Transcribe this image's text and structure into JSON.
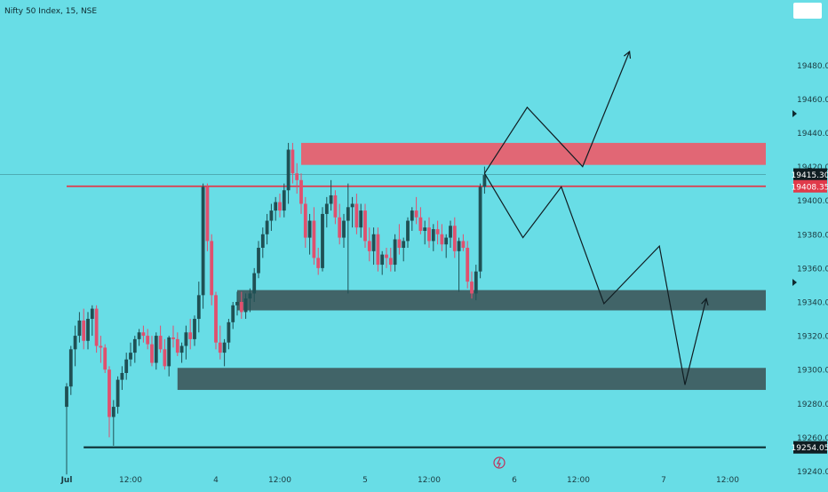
{
  "header": {
    "title": "Nifty 50 Index, 15, NSE"
  },
  "colors": {
    "background": "#68dde6",
    "bull": "#1f5054",
    "bear": "#e0506e",
    "supply_zone": "#e8606f",
    "demand_zone": "#3d575a",
    "price_line": "#e03a4a",
    "support_line": "#0d2e33",
    "drawing": "#101d22"
  },
  "chart_data": {
    "type": "candlestick",
    "symbol": "Nifty 50 Index",
    "interval": "15",
    "exchange": "NSE",
    "ylim": [
      19235,
      19500
    ],
    "y_ticks": [
      19240,
      19260,
      19280,
      19300,
      19320,
      19340,
      19360,
      19380,
      19400,
      19420,
      19440,
      19460,
      19480
    ],
    "x_ticks": [
      {
        "label": "Jul",
        "bar": 0
      },
      {
        "label": "12:00",
        "bar": 15
      },
      {
        "label": "4",
        "bar": 35
      },
      {
        "label": "12:00",
        "bar": 50
      },
      {
        "label": "5",
        "bar": 70
      },
      {
        "label": "12:00",
        "bar": 85
      },
      {
        "label": "6",
        "bar": 105
      },
      {
        "label": "12:00",
        "bar": 120
      },
      {
        "label": "7",
        "bar": 140
      },
      {
        "label": "12:00",
        "bar": 155
      }
    ],
    "price_labels": [
      {
        "value": 19415.3,
        "text": "19415.30",
        "style": "dark"
      },
      {
        "value": 19408.35,
        "text": "19408.35",
        "style": "red"
      },
      {
        "value": 19254.05,
        "text": "19254.05",
        "style": "dark"
      }
    ],
    "current_price": 19408.35,
    "candles": [
      [
        19278,
        19292,
        19238,
        19290
      ],
      [
        19290,
        19314,
        19285,
        19312
      ],
      [
        19312,
        19326,
        19302,
        19320
      ],
      [
        19320,
        19334,
        19316,
        19329
      ],
      [
        19329,
        19336,
        19312,
        19317
      ],
      [
        19317,
        19334,
        19312,
        19330
      ],
      [
        19330,
        19338,
        19320,
        19336
      ],
      [
        19336,
        19338,
        19310,
        19314
      ],
      [
        19314,
        19320,
        19304,
        19313
      ],
      [
        19313,
        19315,
        19298,
        19300
      ],
      [
        19300,
        19302,
        19260,
        19272
      ],
      [
        19272,
        19282,
        19255,
        19278
      ],
      [
        19278,
        19296,
        19274,
        19294
      ],
      [
        19294,
        19302,
        19288,
        19298
      ],
      [
        19298,
        19310,
        19294,
        19306
      ],
      [
        19306,
        19316,
        19302,
        19310
      ],
      [
        19310,
        19320,
        19304,
        19318
      ],
      [
        19318,
        19324,
        19314,
        19322
      ],
      [
        19322,
        19326,
        19316,
        19320
      ],
      [
        19320,
        19324,
        19312,
        19315
      ],
      [
        19315,
        19320,
        19302,
        19304
      ],
      [
        19304,
        19322,
        19300,
        19320
      ],
      [
        19320,
        19326,
        19310,
        19312
      ],
      [
        19312,
        19318,
        19300,
        19302
      ],
      [
        19302,
        19320,
        19296,
        19319
      ],
      [
        19319,
        19326,
        19313,
        19318
      ],
      [
        19318,
        19322,
        19308,
        19310
      ],
      [
        19310,
        19316,
        19304,
        19314
      ],
      [
        19314,
        19326,
        19306,
        19322
      ],
      [
        19322,
        19330,
        19312,
        19318
      ],
      [
        19318,
        19332,
        19314,
        19330
      ],
      [
        19330,
        19352,
        19322,
        19344
      ],
      [
        19344,
        19410,
        19336,
        19408
      ],
      [
        19408,
        19410,
        19370,
        19376
      ],
      [
        19376,
        19380,
        19338,
        19344
      ],
      [
        19344,
        19346,
        19312,
        19316
      ],
      [
        19316,
        19326,
        19306,
        19310
      ],
      [
        19310,
        19318,
        19302,
        19316
      ],
      [
        19316,
        19330,
        19312,
        19328
      ],
      [
        19328,
        19340,
        19324,
        19338
      ],
      [
        19338,
        19346,
        19332,
        19340
      ],
      [
        19340,
        19346,
        19330,
        19334
      ],
      [
        19334,
        19345,
        19330,
        19342
      ],
      [
        19342,
        19348,
        19334,
        19345
      ],
      [
        19345,
        19360,
        19340,
        19357
      ],
      [
        19357,
        19376,
        19354,
        19372
      ],
      [
        19372,
        19384,
        19366,
        19380
      ],
      [
        19380,
        19392,
        19374,
        19388
      ],
      [
        19388,
        19398,
        19382,
        19394
      ],
      [
        19394,
        19402,
        19388,
        19399
      ],
      [
        19399,
        19404,
        19390,
        19394
      ],
      [
        19394,
        19410,
        19390,
        19406
      ],
      [
        19406,
        19434,
        19398,
        19430
      ],
      [
        19430,
        19434,
        19410,
        19416
      ],
      [
        19416,
        19422,
        19404,
        19412
      ],
      [
        19412,
        19416,
        19392,
        19398
      ],
      [
        19398,
        19402,
        19372,
        19378
      ],
      [
        19378,
        19392,
        19368,
        19388
      ],
      [
        19388,
        19396,
        19362,
        19366
      ],
      [
        19366,
        19372,
        19356,
        19360
      ],
      [
        19360,
        19396,
        19358,
        19392
      ],
      [
        19392,
        19402,
        19384,
        19398
      ],
      [
        19398,
        19412,
        19394,
        19403
      ],
      [
        19403,
        19406,
        19386,
        19390
      ],
      [
        19390,
        19398,
        19374,
        19378
      ],
      [
        19378,
        19392,
        19372,
        19388
      ],
      [
        19388,
        19410,
        19345,
        19396
      ],
      [
        19396,
        19402,
        19384,
        19398
      ],
      [
        19398,
        19404,
        19380,
        19384
      ],
      [
        19384,
        19398,
        19378,
        19394
      ],
      [
        19394,
        19398,
        19372,
        19376
      ],
      [
        19376,
        19384,
        19364,
        19370
      ],
      [
        19370,
        19384,
        19362,
        19380
      ],
      [
        19380,
        19384,
        19358,
        19362
      ],
      [
        19362,
        19370,
        19356,
        19368
      ],
      [
        19368,
        19372,
        19360,
        19366
      ],
      [
        19366,
        19372,
        19358,
        19362
      ],
      [
        19362,
        19380,
        19358,
        19377
      ],
      [
        19377,
        19386,
        19368,
        19372
      ],
      [
        19372,
        19378,
        19364,
        19376
      ],
      [
        19376,
        19390,
        19372,
        19388
      ],
      [
        19388,
        19396,
        19382,
        19394
      ],
      [
        19394,
        19402,
        19386,
        19390
      ],
      [
        19390,
        19396,
        19380,
        19382
      ],
      [
        19382,
        19388,
        19374,
        19384
      ],
      [
        19384,
        19390,
        19372,
        19376
      ],
      [
        19376,
        19386,
        19370,
        19383
      ],
      [
        19383,
        19388,
        19374,
        19380
      ],
      [
        19380,
        19386,
        19370,
        19374
      ],
      [
        19374,
        19380,
        19366,
        19378
      ],
      [
        19378,
        19388,
        19372,
        19385
      ],
      [
        19385,
        19390,
        19366,
        19370
      ],
      [
        19370,
        19378,
        19346,
        19376
      ],
      [
        19376,
        19380,
        19370,
        19372
      ],
      [
        19372,
        19376,
        19348,
        19352
      ],
      [
        19352,
        19358,
        19342,
        19345
      ],
      [
        19345,
        19362,
        19341,
        19358
      ],
      [
        19358,
        19410,
        19354,
        19408
      ],
      [
        19408,
        19420,
        19404,
        19415
      ]
    ],
    "zones": [
      {
        "name": "supply",
        "from_bar": 55,
        "to_bar": 167,
        "low": 19421,
        "high": 19434
      },
      {
        "name": "demand-upper",
        "from_bar": 40,
        "to_bar": 167,
        "low": 19335,
        "high": 19347
      },
      {
        "name": "demand-lower",
        "from_bar": 26,
        "to_bar": 167,
        "low": 19288,
        "high": 19301
      }
    ],
    "lines": [
      {
        "name": "support-line",
        "value": 19254.05,
        "from_bar": 4,
        "to_bar": 167
      },
      {
        "name": "price-line",
        "value": 19408.35,
        "from_bar": 0,
        "to_bar": 167
      }
    ],
    "path_up": [
      [
        98,
        19416
      ],
      [
        108,
        19455
      ],
      [
        121,
        19420
      ],
      [
        132,
        19488
      ]
    ],
    "path_down": [
      [
        98,
        19416
      ],
      [
        107,
        19378
      ],
      [
        116,
        19408
      ],
      [
        126,
        19339
      ],
      [
        139,
        19373
      ],
      [
        145,
        19291
      ],
      [
        150,
        19342
      ]
    ]
  }
}
